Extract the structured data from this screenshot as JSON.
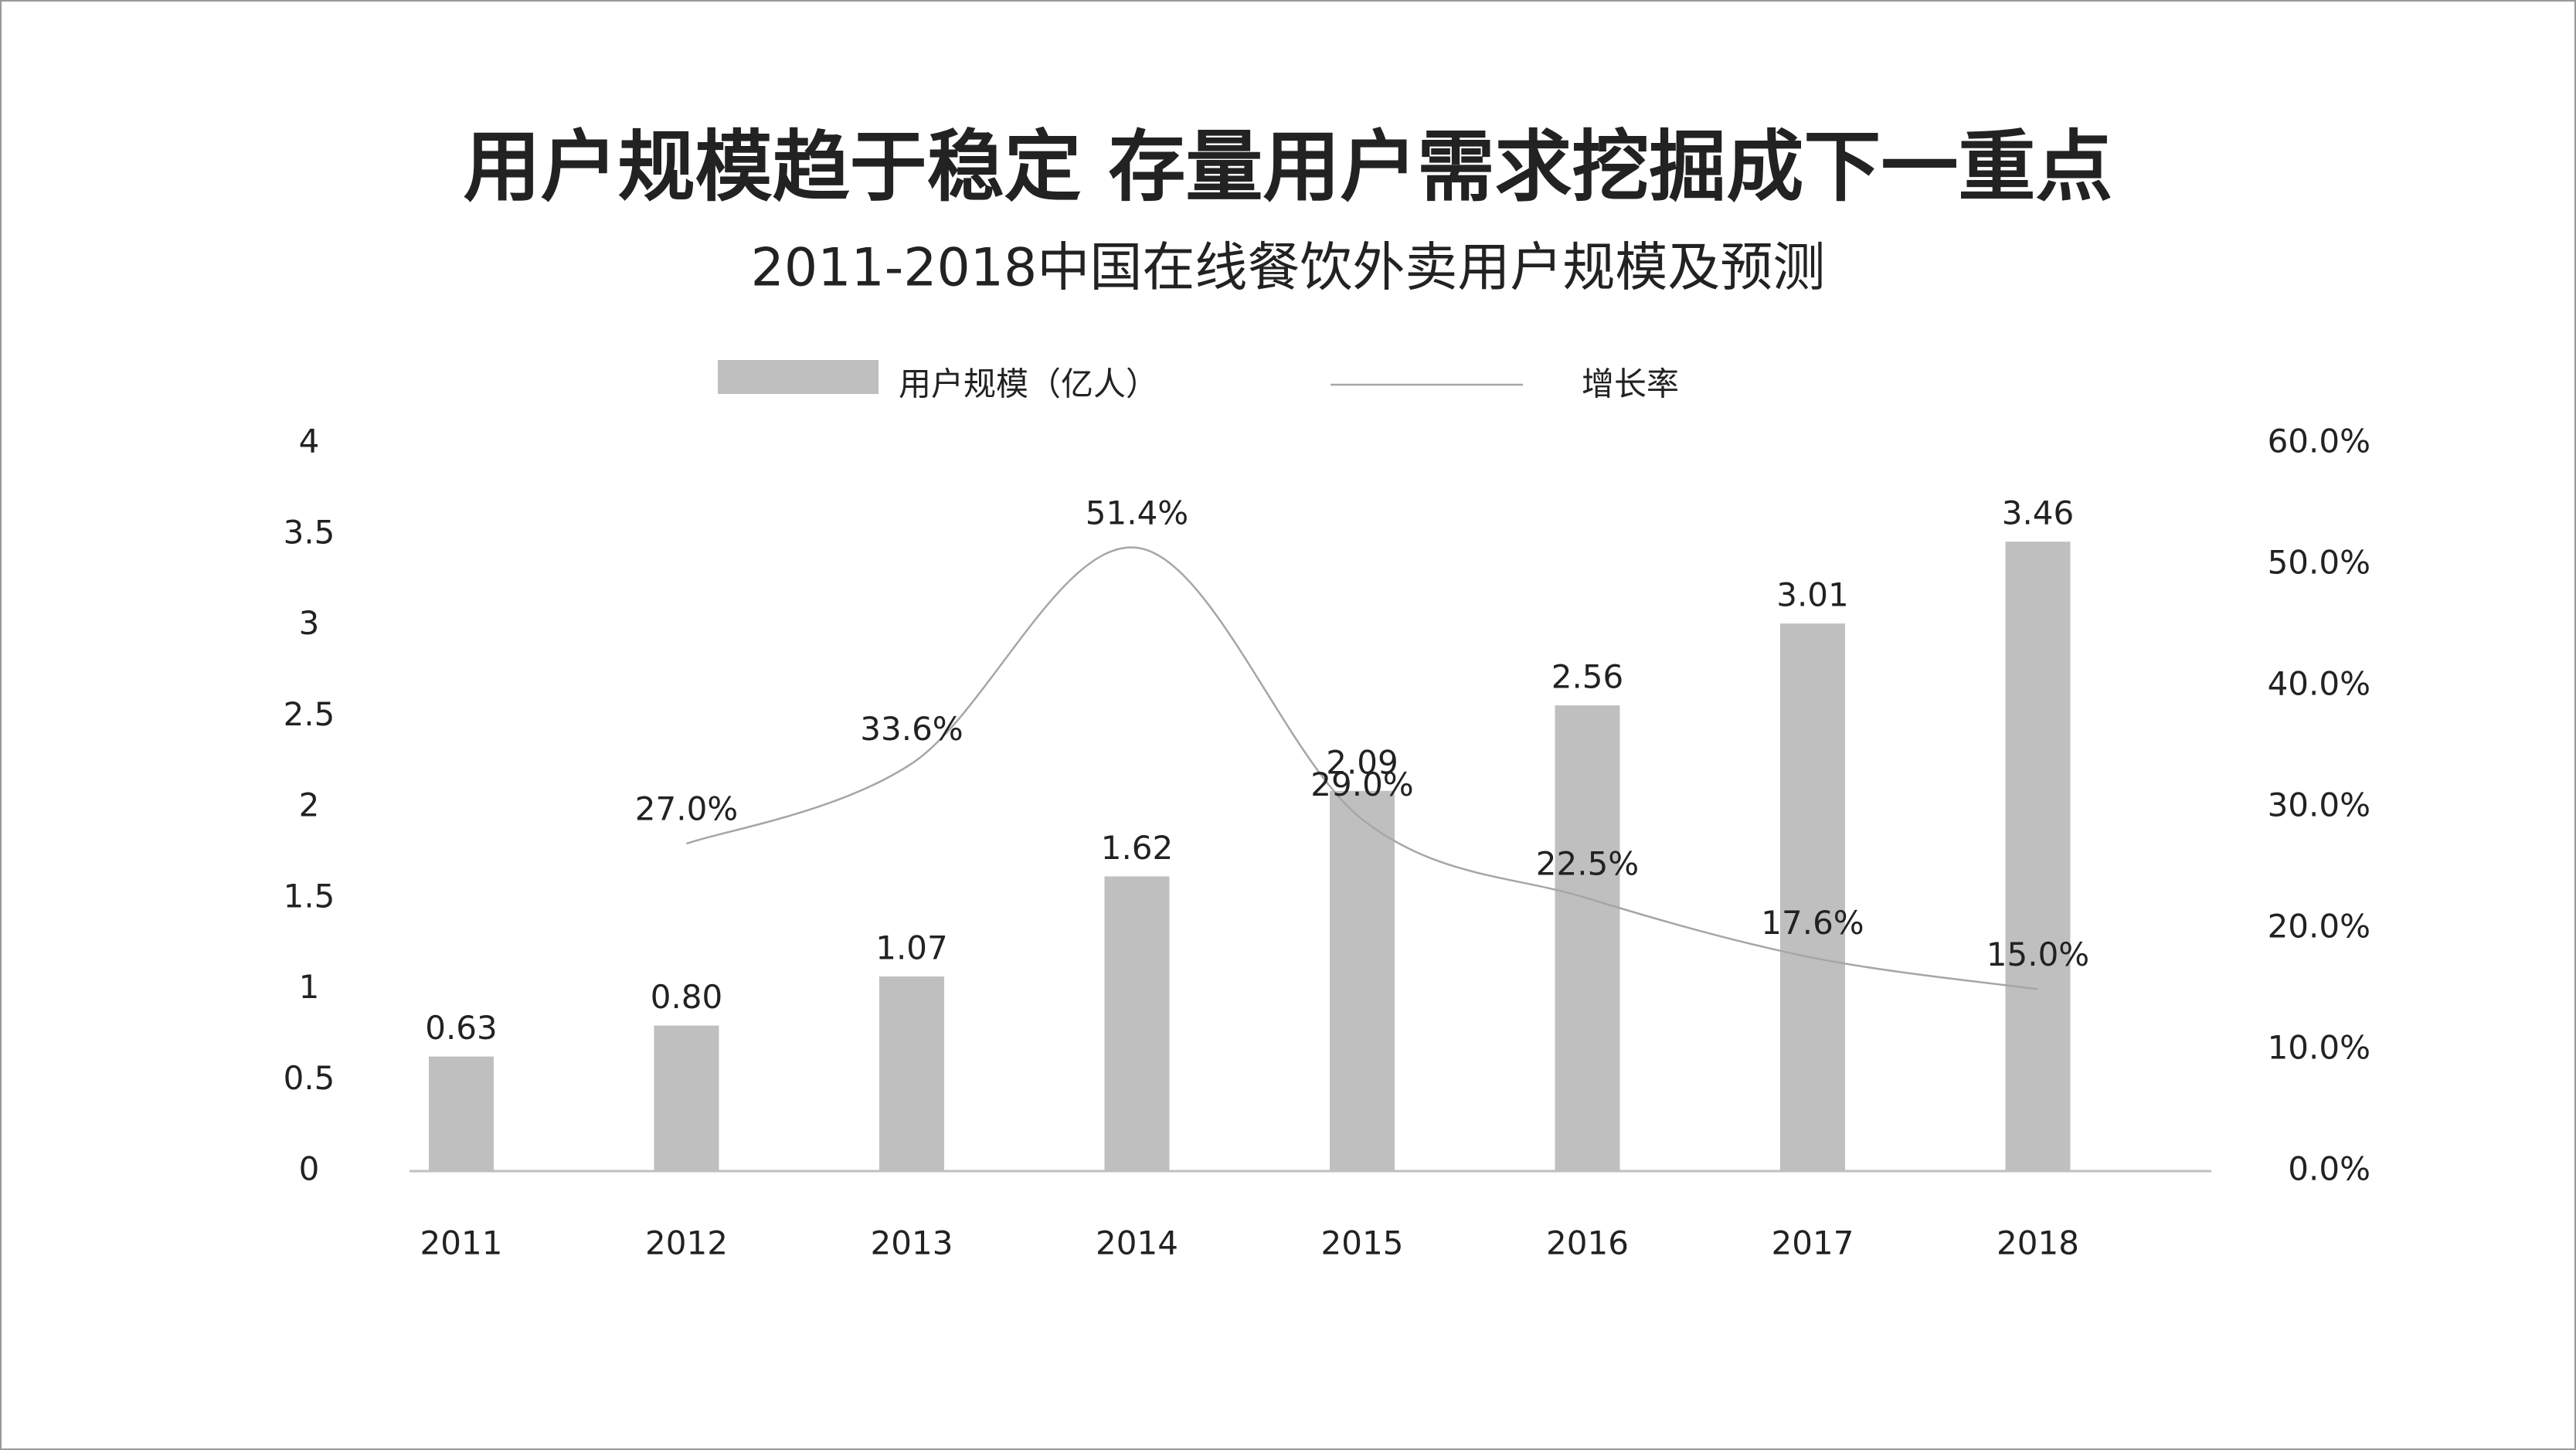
{
  "chart_data": {
    "type": "bar",
    "title": "用户规模趋于稳定 存量用户需求挖掘成下一重点",
    "subtitle": "2011-2018中国在线餐饮外卖用户规模及预测",
    "categories": [
      "2011",
      "2012",
      "2013",
      "2014",
      "2015",
      "2016",
      "2017",
      "2018"
    ],
    "series": [
      {
        "name": "用户规模（亿人）",
        "type": "bar",
        "color": "#bfbfbf",
        "values": [
          0.63,
          0.8,
          1.07,
          1.62,
          2.09,
          2.56,
          3.01,
          3.46
        ],
        "value_labels": [
          "0.63",
          "0.80",
          "1.07",
          "1.62",
          "2.09",
          "2.56",
          "3.01",
          "3.46"
        ]
      },
      {
        "name": "增长率",
        "type": "line",
        "axis": "y2",
        "color": "#a6a6a6",
        "values": [
          null,
          27.0,
          33.6,
          51.4,
          29.0,
          22.5,
          17.6,
          15.0
        ],
        "value_labels": [
          null,
          "27.0%",
          "33.6%",
          "51.4%",
          "29.0%",
          "22.5%",
          "17.6%",
          "15.0%"
        ]
      }
    ],
    "ylim": [
      0,
      4
    ],
    "yticks": [
      0,
      0.5,
      1,
      1.5,
      2,
      2.5,
      3,
      3.5,
      4
    ],
    "y2lim": [
      0,
      60
    ],
    "y2ticks": [
      {
        "value": 0,
        "label": "0.0%"
      },
      {
        "value": 10,
        "label": "10.0%"
      },
      {
        "value": 20,
        "label": "20.0%"
      },
      {
        "value": 30,
        "label": "30.0%"
      },
      {
        "value": 40,
        "label": "40.0%"
      },
      {
        "value": 50,
        "label": "50.0%"
      },
      {
        "value": 60,
        "label": "60.0%"
      }
    ],
    "grid": false,
    "legend": "top"
  }
}
